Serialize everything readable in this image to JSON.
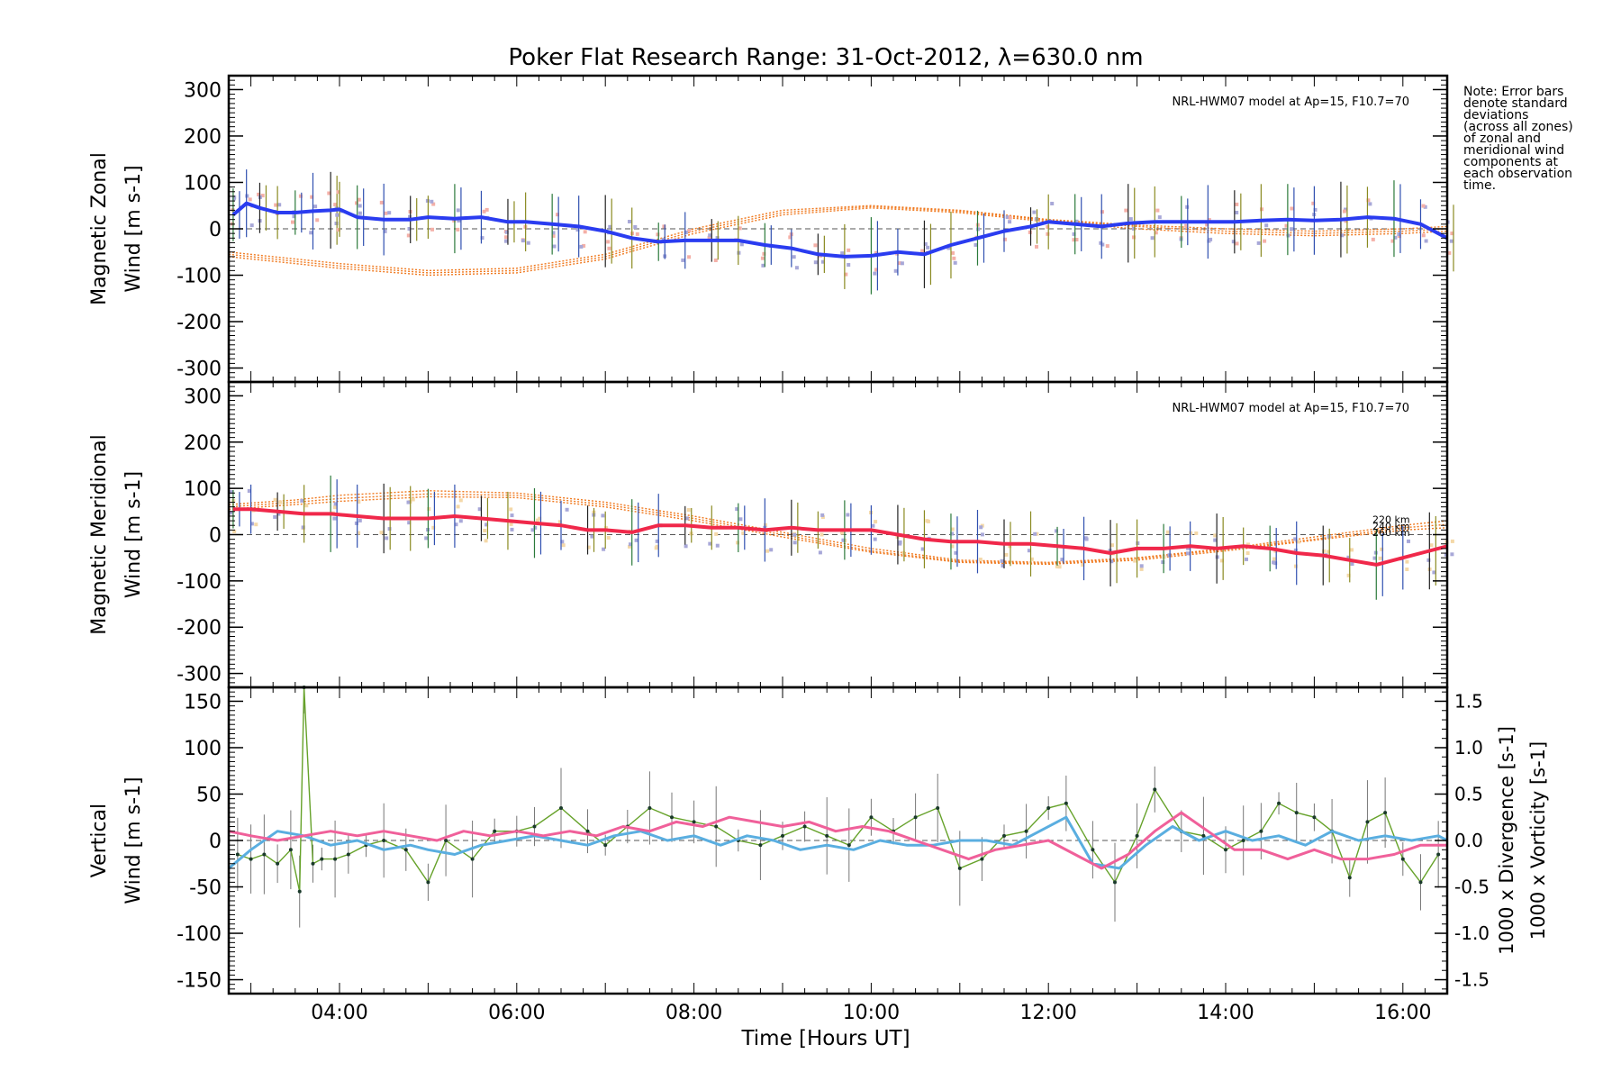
{
  "figure": {
    "title": "Poker Flat Research Range: 31-Oct-2012, λ=630.0 nm",
    "xlabel": "Time [Hours UT]",
    "note_lines": [
      "Note: Error bars",
      "denote standard",
      "deviations",
      "(across all zones)",
      "of zonal and",
      "meridional wind",
      "components at",
      "each observation",
      "time."
    ]
  },
  "colors": {
    "zonal": "#2a3cf0",
    "zonal_light": "#5aaee0",
    "meridional": "#f0284a",
    "vertical": "#66a22a",
    "divergence": "#5aaee0",
    "vorticity": "#f0609a",
    "model": "#f07a20",
    "scatter": "#a8a8d8",
    "pink_scatter": "#f4b0a8",
    "tan_scatter": "#f4d8a8"
  },
  "chart_data": [
    {
      "type": "line",
      "panel": "zonal",
      "ylabel_lines": [
        "Magnetic Zonal",
        "Wind [m s-1]"
      ],
      "annotation": "NRL-HWM07 model at Ap=15, F10.7=70",
      "xlim": [
        2.75,
        16.5
      ],
      "ylim": [
        -330,
        330
      ],
      "yticks": [
        -300,
        -200,
        -100,
        0,
        100,
        200,
        300
      ],
      "xticks": [
        "04:00",
        "06:00",
        "08:00",
        "10:00",
        "12:00",
        "14:00",
        "16:00"
      ],
      "xtick_values": [
        4,
        6,
        8,
        10,
        12,
        14,
        16
      ],
      "series": [
        {
          "x": [
            2.8,
            2.95,
            3.1,
            3.3,
            3.5,
            3.7,
            3.9,
            4.0,
            4.2,
            4.5,
            4.8,
            5.0,
            5.3,
            5.6,
            5.9,
            6.1,
            6.4,
            6.7,
            7.0,
            7.3,
            7.6,
            7.9,
            8.2,
            8.5,
            8.8,
            9.1,
            9.4,
            9.7,
            10.0,
            10.3,
            10.6,
            10.9,
            11.2,
            11.5,
            11.8,
            12.0,
            12.3,
            12.6,
            12.9,
            13.2,
            13.5,
            13.8,
            14.1,
            14.4,
            14.7,
            15.0,
            15.3,
            15.6,
            15.9,
            16.2,
            16.5
          ],
          "values": [
            30,
            55,
            45,
            35,
            35,
            38,
            40,
            42,
            25,
            20,
            20,
            25,
            22,
            25,
            15,
            15,
            10,
            5,
            -5,
            -20,
            -28,
            -25,
            -25,
            -25,
            -35,
            -42,
            -55,
            -60,
            -58,
            -50,
            -55,
            -35,
            -20,
            -5,
            5,
            15,
            10,
            5,
            12,
            15,
            15,
            15,
            15,
            18,
            20,
            18,
            20,
            25,
            22,
            10,
            -20
          ]
        }
      ],
      "model_series": [
        {
          "x": [
            2.75,
            3.5,
            4.0,
            5.0,
            6.0,
            7.0,
            8.0,
            9.0,
            10.0,
            11.0,
            12.0,
            13.0,
            14.0,
            15.0,
            16.0,
            16.5
          ],
          "values": [
            -60,
            -75,
            -85,
            -100,
            -95,
            -65,
            -10,
            30,
            45,
            35,
            15,
            0,
            -10,
            -15,
            -10,
            -5
          ]
        },
        {
          "x": [
            2.75,
            3.5,
            4.0,
            5.0,
            6.0,
            7.0,
            8.0,
            9.0,
            10.0,
            11.0,
            12.0,
            13.0,
            14.0,
            15.0,
            16.0,
            16.5
          ],
          "values": [
            -55,
            -70,
            -80,
            -95,
            -90,
            -60,
            -5,
            35,
            48,
            38,
            18,
            5,
            -5,
            -10,
            -5,
            0
          ]
        },
        {
          "x": [
            2.75,
            3.5,
            4.0,
            5.0,
            6.0,
            7.0,
            8.0,
            9.0,
            10.0,
            11.0,
            12.0,
            13.0,
            14.0,
            15.0,
            16.0,
            16.5
          ],
          "values": [
            -50,
            -65,
            -75,
            -90,
            -85,
            -55,
            0,
            40,
            50,
            40,
            20,
            8,
            0,
            -5,
            0,
            5
          ]
        }
      ]
    },
    {
      "type": "line",
      "panel": "meridional",
      "ylabel_lines": [
        "Magnetic Meridional",
        "Wind [m s-1]"
      ],
      "annotation": "NRL-HWM07 model at Ap=15, F10.7=70",
      "model_labels": [
        "220 km",
        "240 km",
        "260 km"
      ],
      "xlim": [
        2.75,
        16.5
      ],
      "ylim": [
        -330,
        330
      ],
      "yticks": [
        -300,
        -200,
        -100,
        0,
        100,
        200,
        300
      ],
      "series": [
        {
          "x": [
            2.8,
            3.0,
            3.3,
            3.6,
            3.9,
            4.2,
            4.5,
            4.8,
            5.0,
            5.3,
            5.6,
            5.9,
            6.2,
            6.5,
            6.8,
            7.0,
            7.3,
            7.6,
            7.9,
            8.2,
            8.5,
            8.8,
            9.1,
            9.4,
            9.7,
            10.0,
            10.3,
            10.6,
            10.9,
            11.2,
            11.5,
            11.8,
            12.1,
            12.4,
            12.7,
            13.0,
            13.3,
            13.6,
            13.9,
            14.2,
            14.5,
            14.8,
            15.1,
            15.4,
            15.7,
            16.0,
            16.3,
            16.5
          ],
          "values": [
            55,
            55,
            50,
            45,
            45,
            40,
            35,
            35,
            35,
            40,
            35,
            30,
            25,
            20,
            10,
            10,
            5,
            20,
            20,
            15,
            15,
            10,
            15,
            10,
            10,
            10,
            0,
            -10,
            -15,
            -15,
            -20,
            -20,
            -25,
            -30,
            -40,
            -30,
            -30,
            -25,
            -30,
            -25,
            -30,
            -40,
            -45,
            -55,
            -65,
            -50,
            -35,
            -25
          ]
        }
      ],
      "model_series": [
        {
          "x": [
            2.75,
            3.5,
            4.0,
            5.0,
            6.0,
            7.0,
            8.0,
            9.0,
            10.0,
            11.0,
            12.0,
            13.0,
            14.0,
            15.0,
            16.0,
            16.5
          ],
          "values": [
            65,
            75,
            85,
            95,
            90,
            70,
            40,
            5,
            -30,
            -55,
            -60,
            -50,
            -30,
            -5,
            20,
            30
          ]
        },
        {
          "x": [
            2.75,
            3.5,
            4.0,
            5.0,
            6.0,
            7.0,
            8.0,
            9.0,
            10.0,
            11.0,
            12.0,
            13.0,
            14.0,
            15.0,
            16.0,
            16.5
          ],
          "values": [
            60,
            70,
            78,
            88,
            85,
            65,
            35,
            0,
            -35,
            -58,
            -62,
            -52,
            -32,
            -10,
            15,
            22
          ]
        },
        {
          "x": [
            2.75,
            3.5,
            4.0,
            5.0,
            6.0,
            7.0,
            8.0,
            9.0,
            10.0,
            11.0,
            12.0,
            13.0,
            14.0,
            15.0,
            16.0,
            16.5
          ],
          "values": [
            55,
            65,
            72,
            82,
            80,
            60,
            30,
            -5,
            -38,
            -60,
            -64,
            -55,
            -35,
            -12,
            10,
            15
          ]
        }
      ]
    },
    {
      "type": "line",
      "panel": "vertical",
      "ylabel_lines": [
        "Vertical",
        "Wind [m s-1]"
      ],
      "ylabel_right_div": "1000 x Divergence [s-1]",
      "ylabel_right_vort": "1000 x Vorticity [s-1]",
      "xlim": [
        2.75,
        16.5
      ],
      "ylim": [
        -165,
        165
      ],
      "yticks": [
        -150,
        -100,
        -50,
        0,
        50,
        100,
        150
      ],
      "y2lim": [
        -1.65,
        1.65
      ],
      "y2ticks": [
        "-1.5",
        "-1.0",
        "-0.5",
        "0.0",
        "0.5",
        "1.0",
        "1.5"
      ],
      "y2tick_values": [
        -1.5,
        -1.0,
        -0.5,
        0.0,
        0.5,
        1.0,
        1.5
      ],
      "series": [
        {
          "name": "Vertical",
          "x": [
            2.85,
            3.0,
            3.15,
            3.3,
            3.45,
            3.55,
            3.6,
            3.7,
            3.8,
            3.95,
            4.1,
            4.3,
            4.5,
            4.75,
            5.0,
            5.2,
            5.5,
            5.75,
            6.0,
            6.2,
            6.5,
            6.8,
            7.0,
            7.25,
            7.5,
            7.75,
            8.0,
            8.25,
            8.5,
            8.75,
            9.0,
            9.25,
            9.5,
            9.75,
            10.0,
            10.25,
            10.5,
            10.75,
            11.0,
            11.25,
            11.5,
            11.75,
            12.0,
            12.2,
            12.5,
            12.75,
            13.0,
            13.2,
            13.5,
            13.75,
            14.0,
            14.2,
            14.4,
            14.6,
            14.8,
            15.0,
            15.2,
            15.4,
            15.6,
            15.8,
            16.0,
            16.2,
            16.4
          ],
          "values": [
            -15,
            -20,
            -15,
            -25,
            -10,
            -55,
            165,
            -25,
            -20,
            -20,
            -15,
            -5,
            0,
            -10,
            -45,
            0,
            -20,
            10,
            10,
            15,
            35,
            10,
            -5,
            15,
            35,
            25,
            20,
            15,
            0,
            -5,
            5,
            15,
            5,
            -5,
            25,
            10,
            25,
            35,
            -30,
            -20,
            5,
            10,
            35,
            40,
            -10,
            -45,
            5,
            55,
            10,
            5,
            -10,
            0,
            10,
            40,
            30,
            25,
            10,
            -40,
            20,
            30,
            -20,
            -45,
            -15
          ]
        },
        {
          "name": "Divergence",
          "x": [
            2.75,
            3.0,
            3.3,
            3.6,
            3.9,
            4.2,
            4.5,
            4.8,
            5.0,
            5.3,
            5.6,
            5.9,
            6.2,
            6.5,
            6.8,
            7.1,
            7.4,
            7.7,
            8.0,
            8.3,
            8.6,
            8.9,
            9.2,
            9.5,
            9.8,
            10.1,
            10.4,
            10.7,
            11.0,
            11.3,
            11.6,
            11.9,
            12.2,
            12.5,
            12.8,
            13.1,
            13.4,
            13.7,
            14.0,
            14.3,
            14.6,
            14.9,
            15.2,
            15.5,
            15.8,
            16.1,
            16.4,
            16.5
          ],
          "values": [
            -0.3,
            -0.1,
            0.1,
            0.05,
            -0.05,
            0.0,
            -0.1,
            -0.05,
            -0.1,
            -0.15,
            -0.05,
            0.0,
            0.05,
            0.0,
            -0.05,
            0.05,
            0.1,
            0.0,
            0.05,
            -0.05,
            0.05,
            0.0,
            -0.1,
            -0.05,
            -0.1,
            0.0,
            -0.05,
            -0.05,
            0.0,
            0.0,
            -0.05,
            0.1,
            0.25,
            -0.25,
            -0.3,
            -0.05,
            0.15,
            0.0,
            0.1,
            0.0,
            0.05,
            -0.05,
            0.1,
            0.0,
            0.05,
            0.0,
            0.05,
            0.0
          ]
        },
        {
          "name": "Vorticity",
          "x": [
            2.75,
            3.0,
            3.3,
            3.6,
            3.9,
            4.2,
            4.5,
            4.8,
            5.1,
            5.4,
            5.7,
            6.0,
            6.3,
            6.6,
            6.9,
            7.2,
            7.5,
            7.8,
            8.1,
            8.4,
            8.7,
            9.0,
            9.3,
            9.6,
            9.9,
            10.2,
            10.5,
            10.8,
            11.1,
            11.4,
            11.7,
            12.0,
            12.3,
            12.6,
            12.9,
            13.2,
            13.5,
            13.8,
            14.1,
            14.4,
            14.7,
            15.0,
            15.3,
            15.6,
            15.9,
            16.2,
            16.5
          ],
          "values": [
            0.1,
            0.05,
            0.0,
            0.05,
            0.1,
            0.05,
            0.1,
            0.05,
            0.0,
            0.1,
            0.05,
            0.1,
            0.05,
            0.1,
            0.05,
            0.15,
            0.1,
            0.2,
            0.15,
            0.25,
            0.2,
            0.15,
            0.2,
            0.1,
            0.15,
            0.1,
            0.0,
            -0.1,
            -0.2,
            -0.1,
            -0.05,
            0.0,
            -0.15,
            -0.3,
            -0.15,
            0.1,
            0.3,
            0.1,
            -0.1,
            -0.1,
            -0.2,
            -0.1,
            -0.2,
            -0.2,
            -0.15,
            -0.05,
            -0.05
          ]
        }
      ]
    }
  ]
}
